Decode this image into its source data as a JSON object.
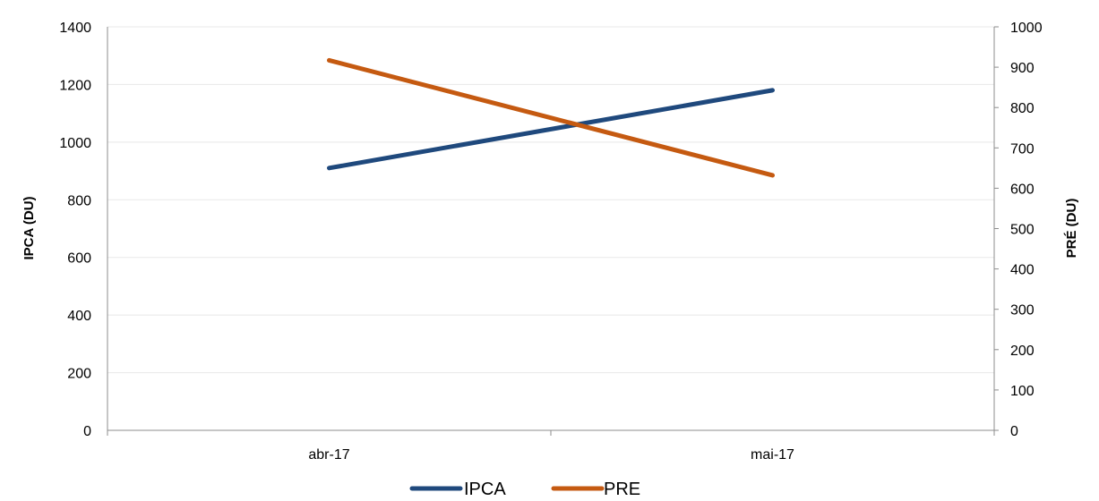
{
  "chart_data": {
    "type": "line",
    "categories": [
      "abr-17",
      "mai-17"
    ],
    "series": [
      {
        "name": "IPCA",
        "axis": "left",
        "color": "#1f497d",
        "values": [
          910,
          1180
        ]
      },
      {
        "name": "PRE",
        "axis": "right",
        "color": "#c55a11",
        "values": [
          917,
          632
        ]
      }
    ],
    "y_left": {
      "label": "IPCA (DU)",
      "range": [
        0,
        1400
      ],
      "ticks": [
        0,
        200,
        400,
        600,
        800,
        1000,
        1200,
        1400
      ]
    },
    "y_right": {
      "label": "PRÉ (DU)",
      "range": [
        0,
        1000
      ],
      "ticks": [
        0,
        100,
        200,
        300,
        400,
        500,
        600,
        700,
        800,
        900,
        1000
      ]
    },
    "grid": "horizontal",
    "legend_position": "bottom-center"
  }
}
